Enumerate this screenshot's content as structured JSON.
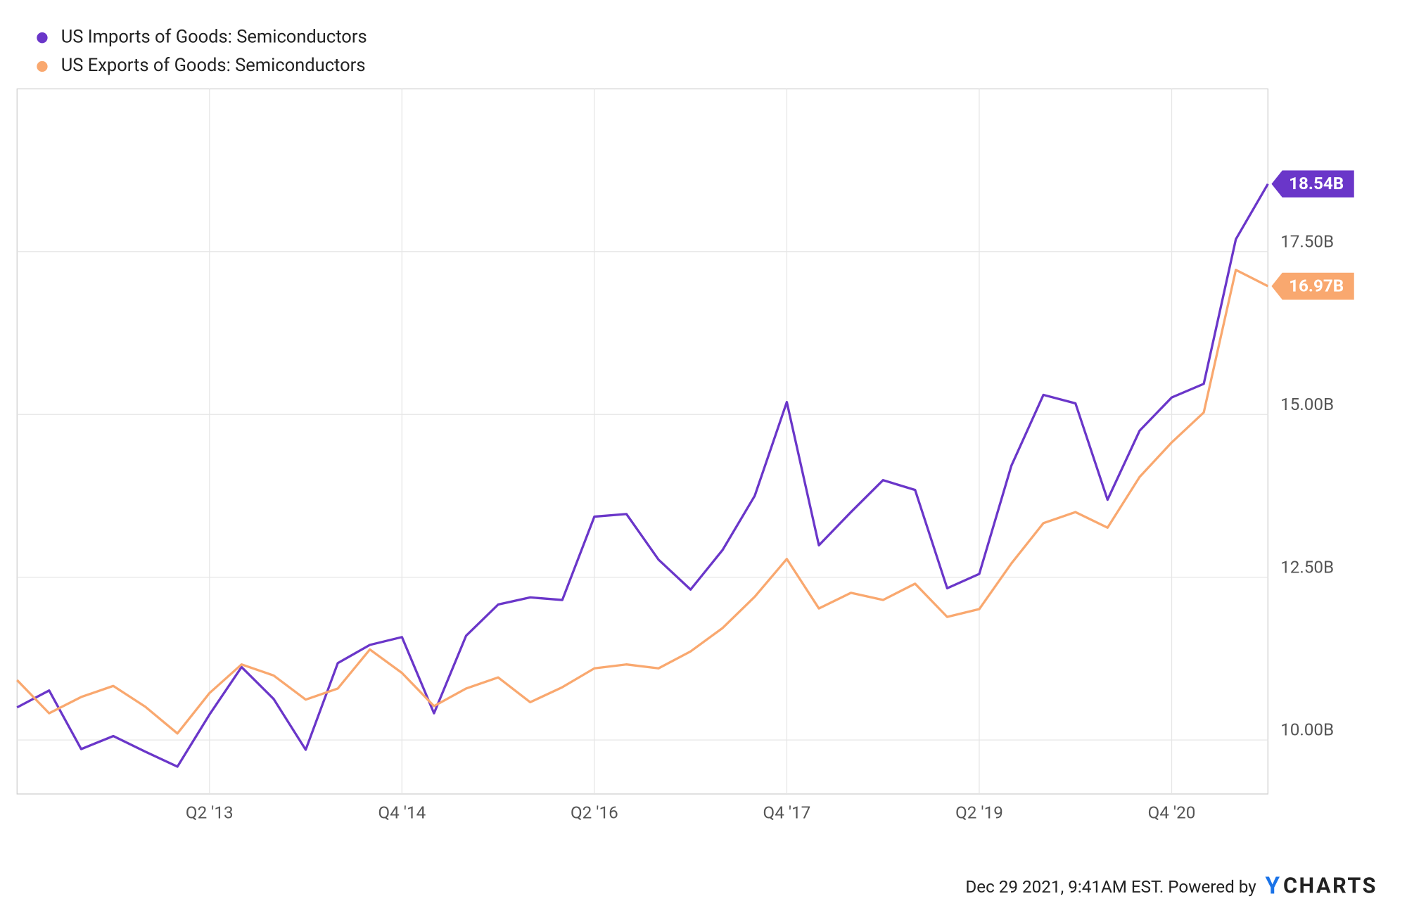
{
  "chart_data": {
    "type": "line",
    "categories": [
      null,
      null,
      null,
      null,
      null,
      null,
      "Q2 '13",
      null,
      null,
      null,
      null,
      null,
      "Q4 '14",
      null,
      null,
      null,
      null,
      null,
      "Q2 '16",
      null,
      null,
      null,
      null,
      null,
      "Q4 '17",
      null,
      null,
      null,
      null,
      null,
      "Q2 '19",
      null,
      null,
      null,
      null,
      null,
      "Q4 '20",
      null,
      null,
      null
    ],
    "series": [
      {
        "name": "US Imports of Goods: Semiconductors",
        "color": "#6a36c9",
        "values": [
          10.5,
          10.76,
          9.86,
          10.06,
          9.82,
          9.59,
          10.39,
          11.12,
          10.63,
          9.85,
          11.18,
          11.46,
          11.58,
          10.41,
          11.6,
          12.08,
          12.19,
          12.15,
          13.43,
          13.47,
          12.77,
          12.31,
          12.92,
          13.75,
          15.19,
          12.99,
          13.5,
          13.99,
          13.84,
          12.33,
          12.55,
          14.21,
          15.3,
          15.17,
          13.69,
          14.75,
          15.26,
          15.47,
          17.69,
          18.54
        ],
        "value_labels": [
          null,
          null,
          null,
          null,
          null,
          null,
          null,
          null,
          null,
          null,
          null,
          null,
          null,
          null,
          null,
          null,
          null,
          null,
          null,
          null,
          null,
          null,
          null,
          null,
          null,
          null,
          null,
          null,
          null,
          null,
          null,
          null,
          null,
          null,
          null,
          null,
          null,
          null,
          null,
          "18.54B"
        ]
      },
      {
        "name": "US Exports of Goods: Semiconductors",
        "color": "#f9a86f",
        "values": [
          10.92,
          10.41,
          10.66,
          10.83,
          10.51,
          10.1,
          10.72,
          11.16,
          10.99,
          10.62,
          10.79,
          11.39,
          11.03,
          10.52,
          10.79,
          10.96,
          10.58,
          10.81,
          11.1,
          11.16,
          11.1,
          11.36,
          11.72,
          12.2,
          12.78,
          12.02,
          12.26,
          12.15,
          12.4,
          11.89,
          12.01,
          12.71,
          13.33,
          13.5,
          13.26,
          14.04,
          14.57,
          15.03,
          17.22,
          16.97
        ],
        "value_labels": [
          null,
          null,
          null,
          null,
          null,
          null,
          null,
          null,
          null,
          null,
          null,
          null,
          null,
          null,
          null,
          null,
          null,
          null,
          null,
          null,
          null,
          null,
          null,
          null,
          null,
          null,
          null,
          null,
          null,
          null,
          null,
          null,
          null,
          null,
          null,
          null,
          null,
          null,
          null,
          "16.97B"
        ]
      }
    ],
    "ylim": [
      9.17,
      20.0
    ],
    "yticks": [
      {
        "value": 10,
        "label": "10.00B"
      },
      {
        "value": 12.5,
        "label": "12.50B"
      },
      {
        "value": 15,
        "label": "15.00B"
      },
      {
        "value": 17.5,
        "label": "17.50B"
      }
    ],
    "grid": true,
    "legend": "top-left",
    "footer": {
      "text": "Dec 29 2021, 9:41AM EST. Powered by",
      "brand_mark": "Y",
      "brand": "CHARTS"
    }
  }
}
